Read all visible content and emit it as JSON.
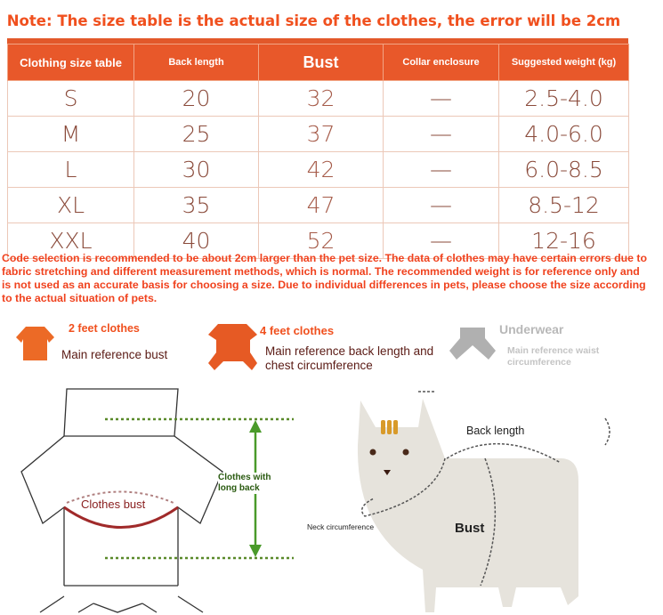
{
  "note": "Note: The size table is the actual size of the clothes, the error will be 2cm",
  "table": {
    "headers": [
      "Clothing size table",
      "Back length",
      "Bust",
      "Collar enclosure",
      "Suggested weight (kg)"
    ],
    "rows": [
      [
        "S",
        "20",
        "32",
        "—",
        "2.5-4.0"
      ],
      [
        "M",
        "25",
        "37",
        "—",
        "4.0-6.0"
      ],
      [
        "L",
        "30",
        "42",
        "—",
        "6.0-8.5"
      ],
      [
        "XL",
        "35",
        "47",
        "—",
        "8.5-12"
      ],
      [
        "XXL",
        "40",
        "52",
        "—",
        "12-16"
      ]
    ]
  },
  "disclaimer": "Code selection is recommended to be about 2cm larger than the pet size. The data of clothes may have certain errors due to fabric stretching and different measurement methods, which is normal. The recommended weight is for reference only and is not used as an accurate basis for choosing a size. Due to individual differences in pets, please choose the size according to the actual situation of pets.",
  "types": [
    {
      "title": "2 feet clothes",
      "desc": "Main reference bust",
      "icon": "two-feet-clothes-icon",
      "color": "#ec6a26"
    },
    {
      "title": "4 feet clothes",
      "desc": "Main reference back length and chest circumference",
      "icon": "four-feet-clothes-icon",
      "color": "#e65a24"
    },
    {
      "title": "Underwear",
      "desc": "Main reference waist circumference",
      "icon": "underwear-icon",
      "color": "#b0b0b0"
    }
  ],
  "diagram": {
    "clothes_bust": "Clothes bust",
    "clothes_long_back_1": "Clothes with",
    "clothes_long_back_2": "long back",
    "back_length": "Back length",
    "neck": "Neck circumference",
    "bust": "Bust"
  },
  "colors": {
    "accent": "#e8582a",
    "text_red": "#f0421e",
    "arrow_green": "#4a9a2a"
  }
}
